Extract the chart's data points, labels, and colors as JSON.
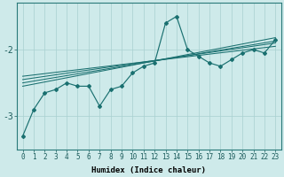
{
  "xlabel": "Humidex (Indice chaleur)",
  "bg_color": "#ceeaea",
  "grid_color": "#a8d0d0",
  "line_color": "#1a7070",
  "x_ticks": [
    0,
    1,
    2,
    3,
    4,
    5,
    6,
    7,
    8,
    9,
    10,
    11,
    12,
    13,
    14,
    15,
    16,
    17,
    18,
    19,
    20,
    21,
    22,
    23
  ],
  "y_ticks": [
    -3,
    -2
  ],
  "ylim": [
    -3.5,
    -1.3
  ],
  "xlim": [
    -0.5,
    23.5
  ],
  "main_line_x": [
    0,
    1,
    2,
    3,
    4,
    5,
    6,
    7,
    8,
    9,
    10,
    11,
    12,
    13,
    14,
    15,
    16,
    17,
    18,
    19,
    20,
    21,
    22,
    23
  ],
  "main_line_y": [
    -3.3,
    -2.9,
    -2.65,
    -2.6,
    -2.5,
    -2.55,
    -2.55,
    -2.85,
    -2.6,
    -2.55,
    -2.35,
    -2.25,
    -2.2,
    -1.6,
    -1.5,
    -2.0,
    -2.1,
    -2.2,
    -2.25,
    -2.15,
    -2.05,
    -2.0,
    -2.05,
    -1.85
  ],
  "reg_lines": [
    {
      "x": [
        0,
        23
      ],
      "y": [
        -2.55,
        -1.82
      ]
    },
    {
      "x": [
        0,
        23
      ],
      "y": [
        -2.5,
        -1.87
      ]
    },
    {
      "x": [
        0,
        23
      ],
      "y": [
        -2.45,
        -1.9
      ]
    },
    {
      "x": [
        0,
        23
      ],
      "y": [
        -2.4,
        -1.95
      ]
    }
  ],
  "xlabel_fontsize": 6.5,
  "tick_fontsize": 5.5,
  "ytick_fontsize": 7.0
}
